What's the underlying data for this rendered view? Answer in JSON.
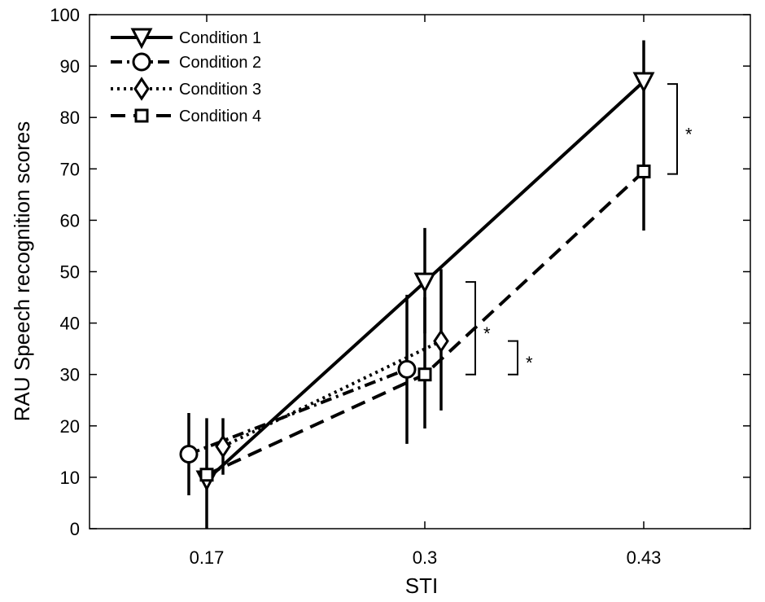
{
  "chart_data": {
    "type": "line",
    "title": "",
    "xlabel": "STI",
    "ylabel": "RAU Speech recognition scores",
    "x_categories": [
      "0.17",
      "0.3",
      "0.43"
    ],
    "ylim": [
      0,
      100
    ],
    "yticks": [
      0,
      10,
      20,
      30,
      40,
      50,
      60,
      70,
      80,
      90,
      100
    ],
    "grid": false,
    "legend_position": "top-left",
    "series": [
      {
        "name": "Condition 1",
        "line_style": "solid",
        "marker": "triangle-down",
        "points": [
          {
            "category": "0.17",
            "y": 9.5,
            "err_low": 0,
            "err_high": 21.5
          },
          {
            "category": "0.3",
            "y": 48,
            "err_low": 38,
            "err_high": 58.5
          },
          {
            "category": "0.43",
            "y": 87,
            "err_low": 58,
            "err_high": 95
          }
        ]
      },
      {
        "name": "Condition 2",
        "line_style": "dash-dot",
        "marker": "circle",
        "points": [
          {
            "category": "0.17",
            "y": 14.5,
            "err_low": 6.5,
            "err_high": 22.5
          },
          {
            "category": "0.3",
            "y": 31,
            "err_low": 16.5,
            "err_high": 45.5
          }
        ]
      },
      {
        "name": "Condition 3",
        "line_style": "dotted",
        "marker": "diamond",
        "points": [
          {
            "category": "0.17",
            "y": 16,
            "err_low": 10.5,
            "err_high": 21.5
          },
          {
            "category": "0.3",
            "y": 36.5,
            "err_low": 23,
            "err_high": 50.5
          }
        ]
      },
      {
        "name": "Condition 4",
        "line_style": "dashed",
        "marker": "square",
        "points": [
          {
            "category": "0.17",
            "y": 10.5
          },
          {
            "category": "0.3",
            "y": 30,
            "err_low": 19.5,
            "err_high": 45
          },
          {
            "category": "0.43",
            "y": 69.5
          }
        ]
      }
    ],
    "significance_brackets": [
      {
        "category": "0.43",
        "y_low": 69,
        "y_high": 86.5,
        "label": "*"
      },
      {
        "category": "0.3",
        "y_low": 30,
        "y_high": 48,
        "label": "*"
      },
      {
        "category": "0.3",
        "y_low": 30,
        "y_high": 36.5,
        "label": "*"
      }
    ]
  }
}
